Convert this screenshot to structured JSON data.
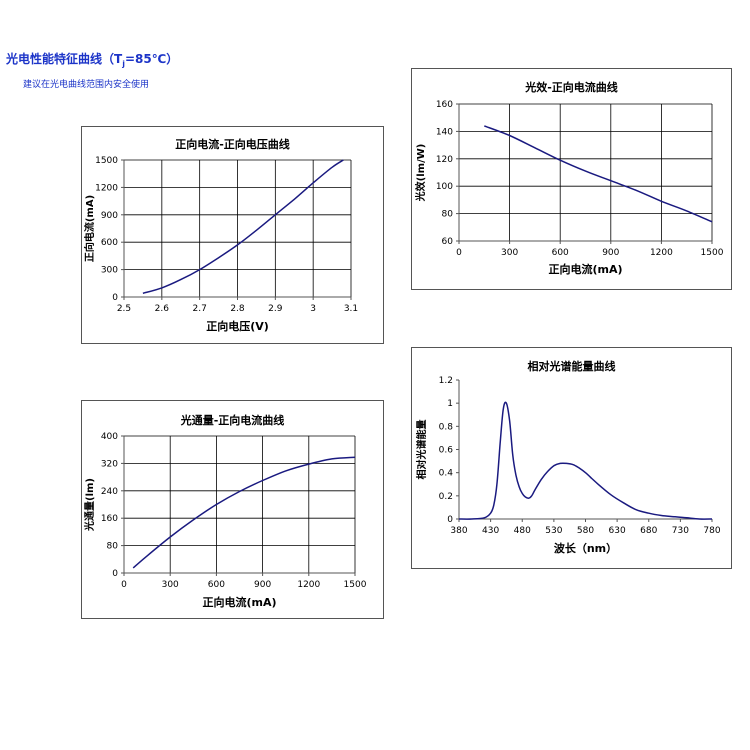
{
  "header": {
    "title_main": "光电性能特征曲线（T",
    "title_sub": "j",
    "title_tail": "=85℃）",
    "subtitle": "建议在光电曲线范围内安全使用"
  },
  "chart_data": [
    {
      "id": "if-vf",
      "type": "line",
      "title": "正向电流-正向电压曲线",
      "xlabel": "正向电压(V)",
      "ylabel": "正向电流(mA)",
      "xlim": [
        2.5,
        3.1
      ],
      "ylim": [
        0,
        1500
      ],
      "xticks": [
        2.5,
        2.6,
        2.7,
        2.8,
        2.9,
        3,
        3.1
      ],
      "yticks": [
        0,
        300,
        600,
        900,
        1200,
        1500
      ],
      "grid": true,
      "series": [
        {
          "x": [
            2.55,
            2.6,
            2.65,
            2.7,
            2.75,
            2.8,
            2.85,
            2.9,
            2.95,
            3.0,
            3.05,
            3.08
          ],
          "y": [
            40,
            100,
            190,
            300,
            430,
            570,
            730,
            900,
            1070,
            1250,
            1420,
            1500
          ]
        }
      ]
    },
    {
      "id": "eff-if",
      "type": "line",
      "title": "光效-正向电流曲线",
      "xlabel": "正向电流(mA)",
      "ylabel": "光效(lm/W)",
      "xlim": [
        0,
        1500
      ],
      "ylim": [
        60,
        160
      ],
      "xticks": [
        0,
        300,
        600,
        900,
        1200,
        1500
      ],
      "yticks": [
        60,
        80,
        100,
        120,
        140,
        160
      ],
      "grid": true,
      "series": [
        {
          "x": [
            150,
            300,
            450,
            600,
            750,
            900,
            1050,
            1200,
            1350,
            1500
          ],
          "y": [
            144,
            137,
            128,
            119,
            111,
            104,
            97,
            89,
            82,
            74
          ]
        }
      ]
    },
    {
      "id": "flux-if",
      "type": "line",
      "title": "光通量-正向电流曲线",
      "xlabel": "正向电流(mA)",
      "ylabel": "光通量(lm)",
      "xlim": [
        0,
        1500
      ],
      "ylim": [
        0,
        400
      ],
      "xticks": [
        0,
        300,
        600,
        900,
        1200,
        1500
      ],
      "yticks": [
        0,
        80,
        160,
        240,
        320,
        400
      ],
      "grid": true,
      "series": [
        {
          "x": [
            60,
            150,
            300,
            450,
            600,
            750,
            900,
            1050,
            1200,
            1350,
            1500
          ],
          "y": [
            15,
            50,
            105,
            155,
            200,
            238,
            270,
            298,
            318,
            333,
            338
          ]
        }
      ]
    },
    {
      "id": "spectrum",
      "type": "line",
      "title": "相对光谱能量曲线",
      "xlabel": "波长（nm）",
      "ylabel": "相对光谱能量",
      "xlim": [
        380,
        780
      ],
      "ylim": [
        0,
        1.2
      ],
      "xticks": [
        380,
        430,
        480,
        530,
        580,
        630,
        680,
        730,
        780
      ],
      "yticks": [
        0,
        0.2,
        0.4,
        0.6,
        0.8,
        1,
        1.2
      ],
      "grid": false,
      "series": [
        {
          "x": [
            380,
            400,
            420,
            430,
            435,
            440,
            445,
            450,
            455,
            460,
            465,
            470,
            475,
            480,
            485,
            490,
            495,
            500,
            510,
            520,
            530,
            540,
            550,
            560,
            570,
            580,
            590,
            600,
            620,
            640,
            660,
            680,
            700,
            720,
            740,
            760,
            780
          ],
          "y": [
            0,
            0.0,
            0.01,
            0.05,
            0.12,
            0.3,
            0.65,
            0.95,
            1.0,
            0.85,
            0.55,
            0.38,
            0.28,
            0.22,
            0.19,
            0.18,
            0.2,
            0.25,
            0.34,
            0.41,
            0.46,
            0.48,
            0.48,
            0.47,
            0.44,
            0.4,
            0.35,
            0.3,
            0.21,
            0.14,
            0.08,
            0.05,
            0.03,
            0.02,
            0.01,
            0.0,
            0.0
          ]
        }
      ]
    }
  ]
}
